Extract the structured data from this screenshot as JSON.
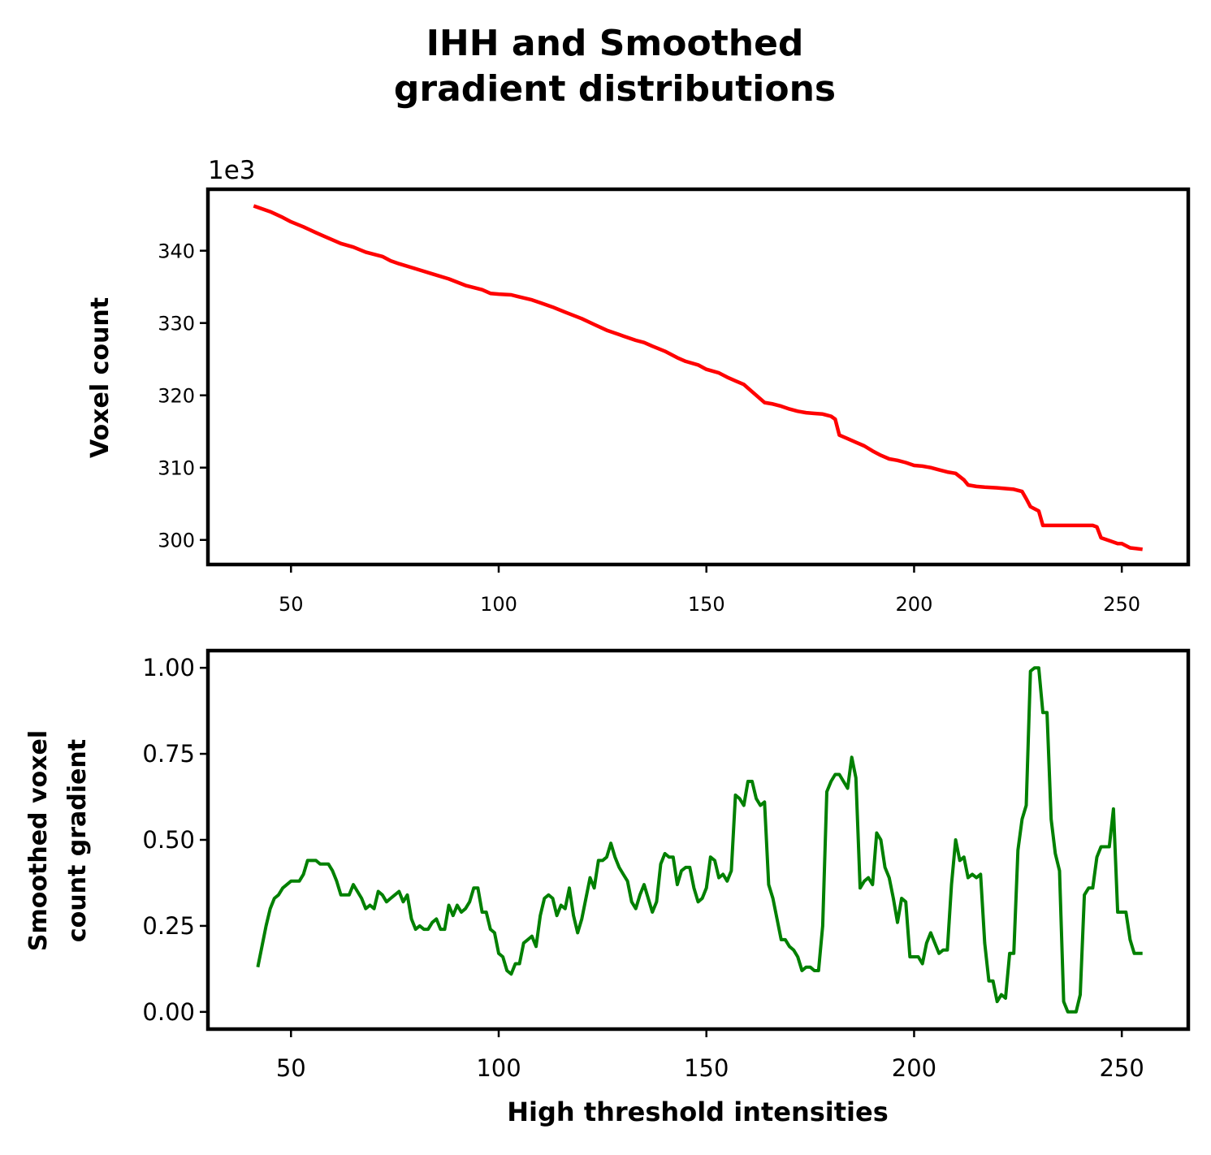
{
  "title_lines": [
    "IHH and Smoothed",
    "gradient distributions"
  ],
  "chart_data": [
    {
      "type": "line",
      "title": "",
      "xlabel": "",
      "ylabel": "Voxel count",
      "offset_text": "1e3",
      "xlim": [
        30,
        266
      ],
      "ylim": [
        296.6,
        348.5
      ],
      "xticks": [
        50,
        100,
        150,
        200,
        250
      ],
      "yticks": [
        300,
        310,
        320,
        330,
        340
      ],
      "color": "#ff0000",
      "series": [
        {
          "x": [
            41,
            45,
            48,
            50,
            53,
            56,
            58,
            62,
            65,
            68,
            72,
            74,
            76,
            80,
            84,
            88,
            92,
            96,
            98,
            100,
            103,
            105,
            108,
            110,
            113,
            116,
            120,
            123,
            126,
            128,
            130,
            133,
            135,
            137,
            140,
            143,
            145,
            148,
            150,
            153,
            155,
            157,
            159,
            160,
            162,
            164,
            166,
            168,
            170,
            172,
            174,
            176,
            178,
            180,
            181,
            182,
            184,
            186,
            188,
            190,
            192,
            194,
            196,
            198,
            200,
            202,
            204,
            206,
            208,
            210,
            212,
            213,
            215,
            217,
            220,
            222,
            224,
            226,
            227,
            228,
            230,
            231,
            233,
            235,
            237,
            240,
            243,
            244,
            245,
            247,
            249,
            250,
            252,
            255
          ],
          "y": [
            346.2,
            345.4,
            344.6,
            344.0,
            343.3,
            342.5,
            342.0,
            341.0,
            340.5,
            339.8,
            339.2,
            338.6,
            338.2,
            337.5,
            336.8,
            336.1,
            335.2,
            334.6,
            334.1,
            334.0,
            333.9,
            333.6,
            333.2,
            332.8,
            332.2,
            331.5,
            330.6,
            329.8,
            329.0,
            328.6,
            328.2,
            327.6,
            327.3,
            326.8,
            326.1,
            325.2,
            324.7,
            324.2,
            323.6,
            323.1,
            322.5,
            322.0,
            321.5,
            321.0,
            320.0,
            319.0,
            318.8,
            318.5,
            318.1,
            317.8,
            317.6,
            317.5,
            317.4,
            317.1,
            316.7,
            314.5,
            314.0,
            313.5,
            313.0,
            312.3,
            311.7,
            311.2,
            311.0,
            310.7,
            310.3,
            310.2,
            310.0,
            309.7,
            309.4,
            309.2,
            308.3,
            307.6,
            307.4,
            307.3,
            307.2,
            307.1,
            307.0,
            306.7,
            305.7,
            304.6,
            304.0,
            302.0,
            302.0,
            302.0,
            302.0,
            302.0,
            302.0,
            301.8,
            300.3,
            299.9,
            299.5,
            299.5,
            298.9,
            298.7
          ]
        }
      ]
    },
    {
      "type": "line",
      "title": "",
      "xlabel": "High threshold intensities",
      "ylabel_lines": [
        "Smoothed voxel",
        "count gradient"
      ],
      "xlim": [
        30,
        266
      ],
      "ylim": [
        -0.05,
        1.05
      ],
      "xticks": [
        50,
        100,
        150,
        200,
        250
      ],
      "yticks": [
        0.0,
        0.25,
        0.5,
        0.75,
        1.0
      ],
      "ytick_labels": [
        "0.00",
        "0.25",
        "0.50",
        "0.75",
        "1.00"
      ],
      "color": "#008000",
      "series": [
        {
          "x": [
            42,
            43,
            44,
            45,
            46,
            47,
            48,
            49,
            50,
            51,
            52,
            53,
            54,
            55,
            56,
            57,
            58,
            59,
            60,
            61,
            62,
            63,
            64,
            65,
            66,
            67,
            68,
            69,
            70,
            71,
            72,
            73,
            74,
            75,
            76,
            77,
            78,
            79,
            80,
            81,
            82,
            83,
            84,
            85,
            86,
            87,
            88,
            89,
            90,
            91,
            92,
            93,
            94,
            95,
            96,
            97,
            98,
            99,
            100,
            101,
            102,
            103,
            104,
            105,
            106,
            107,
            108,
            109,
            110,
            111,
            112,
            113,
            114,
            115,
            116,
            117,
            118,
            119,
            120,
            121,
            122,
            123,
            124,
            125,
            126,
            127,
            128,
            129,
            130,
            131,
            132,
            133,
            134,
            135,
            136,
            137,
            138,
            139,
            140,
            141,
            142,
            143,
            144,
            145,
            146,
            147,
            148,
            149,
            150,
            151,
            152,
            153,
            154,
            155,
            156,
            157,
            158,
            159,
            160,
            161,
            162,
            163,
            164,
            165,
            166,
            167,
            168,
            169,
            170,
            171,
            172,
            173,
            174,
            175,
            176,
            177,
            178,
            179,
            180,
            181,
            182,
            183,
            184,
            185,
            186,
            187,
            188,
            189,
            190,
            191,
            192,
            193,
            194,
            195,
            196,
            197,
            198,
            199,
            200,
            201,
            202,
            203,
            204,
            205,
            206,
            207,
            208,
            209,
            210,
            211,
            212,
            213,
            214,
            215,
            216,
            217,
            218,
            219,
            220,
            221,
            222,
            223,
            224,
            225,
            226,
            227,
            228,
            229,
            230,
            231,
            232,
            233,
            234,
            235,
            236,
            237,
            238,
            239,
            240,
            241,
            242,
            243,
            244,
            245,
            246,
            247,
            248,
            249,
            250,
            251,
            252,
            253,
            254,
            255
          ],
          "y": [
            0.13,
            0.19,
            0.25,
            0.3,
            0.33,
            0.34,
            0.36,
            0.37,
            0.38,
            0.38,
            0.38,
            0.4,
            0.44,
            0.44,
            0.44,
            0.43,
            0.43,
            0.43,
            0.41,
            0.38,
            0.34,
            0.34,
            0.34,
            0.37,
            0.35,
            0.33,
            0.3,
            0.31,
            0.3,
            0.35,
            0.34,
            0.32,
            0.33,
            0.34,
            0.35,
            0.32,
            0.34,
            0.27,
            0.24,
            0.25,
            0.24,
            0.24,
            0.26,
            0.27,
            0.24,
            0.24,
            0.31,
            0.28,
            0.31,
            0.29,
            0.3,
            0.32,
            0.36,
            0.36,
            0.29,
            0.29,
            0.24,
            0.23,
            0.17,
            0.16,
            0.12,
            0.11,
            0.14,
            0.14,
            0.2,
            0.21,
            0.22,
            0.19,
            0.28,
            0.33,
            0.34,
            0.33,
            0.28,
            0.31,
            0.3,
            0.36,
            0.28,
            0.23,
            0.27,
            0.33,
            0.39,
            0.36,
            0.44,
            0.44,
            0.45,
            0.49,
            0.45,
            0.42,
            0.4,
            0.38,
            0.32,
            0.3,
            0.34,
            0.37,
            0.33,
            0.29,
            0.32,
            0.43,
            0.46,
            0.45,
            0.45,
            0.37,
            0.41,
            0.42,
            0.42,
            0.36,
            0.32,
            0.33,
            0.36,
            0.45,
            0.44,
            0.39,
            0.4,
            0.38,
            0.41,
            0.63,
            0.62,
            0.6,
            0.67,
            0.67,
            0.62,
            0.6,
            0.61,
            0.37,
            0.33,
            0.27,
            0.21,
            0.21,
            0.19,
            0.18,
            0.16,
            0.12,
            0.13,
            0.13,
            0.12,
            0.12,
            0.25,
            0.64,
            0.67,
            0.69,
            0.69,
            0.67,
            0.65,
            0.74,
            0.68,
            0.36,
            0.38,
            0.39,
            0.37,
            0.52,
            0.5,
            0.42,
            0.39,
            0.33,
            0.26,
            0.33,
            0.32,
            0.16,
            0.16,
            0.16,
            0.14,
            0.2,
            0.23,
            0.2,
            0.17,
            0.18,
            0.18,
            0.37,
            0.5,
            0.44,
            0.45,
            0.39,
            0.4,
            0.39,
            0.4,
            0.2,
            0.09,
            0.09,
            0.03,
            0.05,
            0.04,
            0.17,
            0.17,
            0.47,
            0.56,
            0.6,
            0.99,
            1.0,
            1.0,
            0.87,
            0.87,
            0.56,
            0.46,
            0.41,
            0.03,
            0.0,
            0.0,
            0.0,
            0.05,
            0.34,
            0.36,
            0.36,
            0.45,
            0.48,
            0.48,
            0.48,
            0.59,
            0.29,
            0.29,
            0.29,
            0.21,
            0.17,
            0.17,
            0.17
          ]
        }
      ]
    }
  ]
}
